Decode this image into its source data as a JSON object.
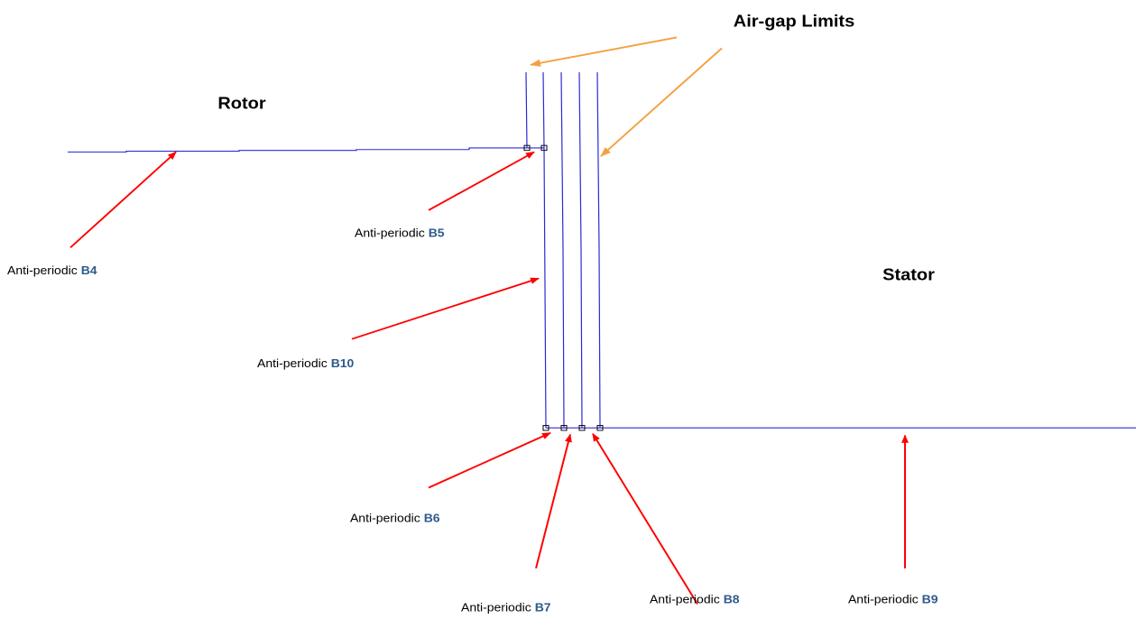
{
  "headings": {
    "rotor": "Rotor",
    "stator": "Stator",
    "airgap": "Air-gap Limits"
  },
  "labels": [
    {
      "text": "Anti-periodic",
      "tag": "B4"
    },
    {
      "text": "Anti-periodic",
      "tag": "B5"
    },
    {
      "text": "Anti-periodic",
      "tag": "B10"
    },
    {
      "text": "Anti-periodic",
      "tag": "B6"
    },
    {
      "text": "Anti-periodic",
      "tag": "B7"
    },
    {
      "text": "Anti-periodic",
      "tag": "B8"
    },
    {
      "text": "Anti-periodic",
      "tag": "B9"
    }
  ]
}
